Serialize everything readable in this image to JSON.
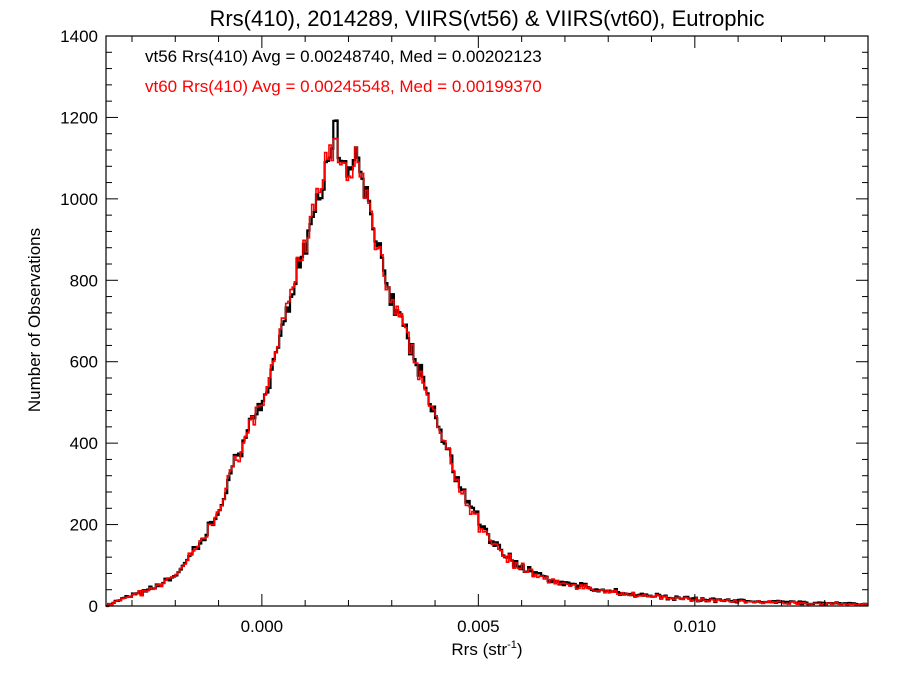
{
  "chart_data": {
    "type": "histogram",
    "title": "Rrs(410), 2014289, VIIRS(vt56) & VIIRS(vt60), Eutrophic",
    "xlabel": {
      "main": "Rrs (str",
      "sup": "-1",
      "close": ")"
    },
    "ylabel": "Number of Observations",
    "xlim": [
      -0.0036,
      0.014
    ],
    "ylim": [
      0,
      1400
    ],
    "x_ticks": [
      0.0,
      0.005,
      0.01
    ],
    "x_tick_labels": [
      "0.000",
      "0.005",
      "0.010"
    ],
    "y_ticks": [
      0,
      200,
      400,
      600,
      800,
      1000,
      1200,
      1400
    ],
    "y_tick_labels": [
      "0",
      "200",
      "400",
      "600",
      "800",
      "1000",
      "1200",
      "1400"
    ],
    "annotations": [
      {
        "text": "vt56 Rrs(410) Avg = 0.00248740, Med = 0.00202123",
        "color": "#000000"
      },
      {
        "text": "vt60 Rrs(410) Avg = 0.00245548, Med = 0.00199370",
        "color": "#ff0000"
      }
    ],
    "series": [
      {
        "name": "vt56",
        "color": "#000000",
        "points": [
          [
            -0.0036,
            0
          ],
          [
            -0.003,
            25
          ],
          [
            -0.0025,
            45
          ],
          [
            -0.002,
            75
          ],
          [
            -0.0015,
            140
          ],
          [
            -0.001,
            230
          ],
          [
            -0.0007,
            330
          ],
          [
            -0.0004,
            410
          ],
          [
            0.0,
            490
          ],
          [
            0.0003,
            610
          ],
          [
            0.0006,
            740
          ],
          [
            0.0009,
            860
          ],
          [
            0.0012,
            970
          ],
          [
            0.0014,
            1040
          ],
          [
            0.0016,
            1120
          ],
          [
            0.0017,
            1180
          ],
          [
            0.0018,
            1110
          ],
          [
            0.002,
            1060
          ],
          [
            0.0022,
            1100
          ],
          [
            0.0024,
            1000
          ],
          [
            0.0026,
            930
          ],
          [
            0.0028,
            840
          ],
          [
            0.003,
            760
          ],
          [
            0.0033,
            670
          ],
          [
            0.0036,
            590
          ],
          [
            0.004,
            470
          ],
          [
            0.0043,
            380
          ],
          [
            0.0046,
            290
          ],
          [
            0.005,
            210
          ],
          [
            0.0054,
            150
          ],
          [
            0.0058,
            110
          ],
          [
            0.0062,
            85
          ],
          [
            0.0068,
            60
          ],
          [
            0.0075,
            45
          ],
          [
            0.0085,
            30
          ],
          [
            0.0095,
            20
          ],
          [
            0.011,
            12
          ],
          [
            0.0125,
            8
          ],
          [
            0.014,
            5
          ]
        ]
      },
      {
        "name": "vt60",
        "color": "#ff0000",
        "points": [
          [
            -0.0036,
            0
          ],
          [
            -0.003,
            24
          ],
          [
            -0.0025,
            44
          ],
          [
            -0.002,
            74
          ],
          [
            -0.0015,
            138
          ],
          [
            -0.001,
            228
          ],
          [
            -0.0007,
            328
          ],
          [
            -0.0004,
            408
          ],
          [
            0.0,
            495
          ],
          [
            0.0003,
            615
          ],
          [
            0.0006,
            745
          ],
          [
            0.0009,
            865
          ],
          [
            0.0012,
            975
          ],
          [
            0.0014,
            1050
          ],
          [
            0.0016,
            1140
          ],
          [
            0.0017,
            1120
          ],
          [
            0.0018,
            1100
          ],
          [
            0.002,
            1050
          ],
          [
            0.0022,
            1090
          ],
          [
            0.0024,
            995
          ],
          [
            0.0026,
            925
          ],
          [
            0.0028,
            835
          ],
          [
            0.003,
            755
          ],
          [
            0.0033,
            665
          ],
          [
            0.0036,
            585
          ],
          [
            0.004,
            465
          ],
          [
            0.0043,
            375
          ],
          [
            0.0046,
            285
          ],
          [
            0.005,
            205
          ],
          [
            0.0054,
            148
          ],
          [
            0.0058,
            108
          ],
          [
            0.0062,
            84
          ],
          [
            0.0068,
            59
          ],
          [
            0.0075,
            44
          ],
          [
            0.0085,
            29
          ],
          [
            0.0095,
            19
          ],
          [
            0.011,
            11
          ],
          [
            0.0125,
            7
          ],
          [
            0.014,
            4
          ]
        ]
      }
    ]
  }
}
